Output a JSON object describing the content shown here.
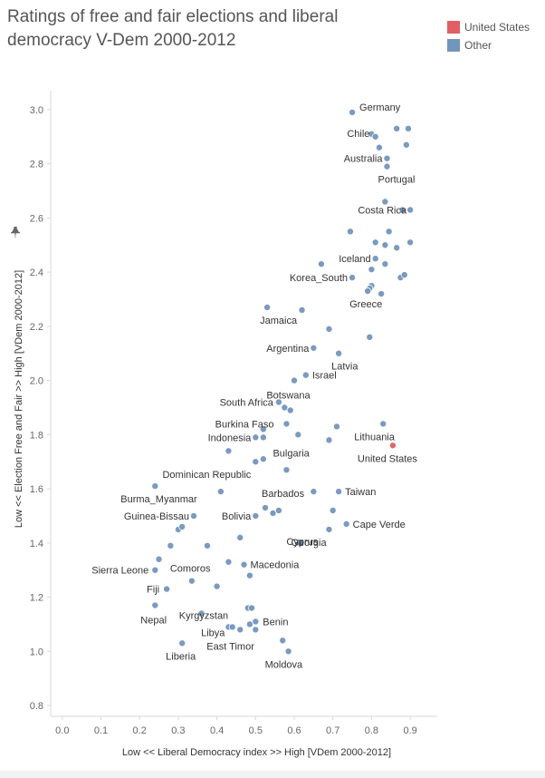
{
  "title": "Ratings of free and fair elections and liberal democracy V-Dem 2000-2012",
  "legend": [
    {
      "label": "United States",
      "color": "#e05f64"
    },
    {
      "label": "Other",
      "color": "#7395bd"
    }
  ],
  "icons": {
    "pin": "pin-icon"
  },
  "chart_data": {
    "type": "scatter",
    "title": "Ratings of free and fair elections and liberal democracy V-Dem 2000-2012",
    "xlabel": "Low << Liberal Democracy index >> High [VDem 2000-2012]",
    "ylabel": "Low << Election Free and Fair >> High [VDem 2000-2012]",
    "xlim": [
      -0.03,
      0.97
    ],
    "ylim": [
      0.76,
      3.07
    ],
    "xticks": [
      "0.0",
      "0.1",
      "0.2",
      "0.3",
      "0.4",
      "0.5",
      "0.6",
      "0.7",
      "0.8",
      "0.9"
    ],
    "yticks": [
      "0.8",
      "1.0",
      "1.2",
      "1.4",
      "1.6",
      "1.8",
      "2.0",
      "2.2",
      "2.4",
      "2.6",
      "2.8",
      "3.0"
    ],
    "grid": false,
    "series": [
      {
        "name": "United States",
        "points": [
          {
            "x": 0.855,
            "y": 1.76,
            "label": "United States"
          }
        ]
      },
      {
        "name": "Other",
        "points": [
          {
            "x": 0.75,
            "y": 2.99,
            "label": "Germany"
          },
          {
            "x": 0.8,
            "y": 2.91,
            "label": "Chile"
          },
          {
            "x": 0.81,
            "y": 2.9
          },
          {
            "x": 0.82,
            "y": 2.86
          },
          {
            "x": 0.865,
            "y": 2.93
          },
          {
            "x": 0.895,
            "y": 2.93
          },
          {
            "x": 0.89,
            "y": 2.87
          },
          {
            "x": 0.84,
            "y": 2.82,
            "label": "Australia"
          },
          {
            "x": 0.84,
            "y": 2.79,
            "label": "Portugal"
          },
          {
            "x": 0.835,
            "y": 2.66
          },
          {
            "x": 0.88,
            "y": 2.63
          },
          {
            "x": 0.9,
            "y": 2.63,
            "label": "Costa Rica"
          },
          {
            "x": 0.745,
            "y": 2.55
          },
          {
            "x": 0.845,
            "y": 2.55
          },
          {
            "x": 0.81,
            "y": 2.51
          },
          {
            "x": 0.835,
            "y": 2.5
          },
          {
            "x": 0.865,
            "y": 2.49
          },
          {
            "x": 0.9,
            "y": 2.51
          },
          {
            "x": 0.81,
            "y": 2.45,
            "label": "Iceland"
          },
          {
            "x": 0.835,
            "y": 2.43
          },
          {
            "x": 0.8,
            "y": 2.41
          },
          {
            "x": 0.67,
            "y": 2.43
          },
          {
            "x": 0.75,
            "y": 2.38,
            "label": "Korea_South"
          },
          {
            "x": 0.875,
            "y": 2.38
          },
          {
            "x": 0.885,
            "y": 2.39
          },
          {
            "x": 0.8,
            "y": 2.35
          },
          {
            "x": 0.795,
            "y": 2.34
          },
          {
            "x": 0.79,
            "y": 2.33,
            "label": "Greece"
          },
          {
            "x": 0.825,
            "y": 2.32
          },
          {
            "x": 0.53,
            "y": 2.27,
            "label": "Jamaica"
          },
          {
            "x": 0.62,
            "y": 2.26
          },
          {
            "x": 0.69,
            "y": 2.19
          },
          {
            "x": 0.795,
            "y": 2.16
          },
          {
            "x": 0.65,
            "y": 2.12,
            "label": "Argentina"
          },
          {
            "x": 0.715,
            "y": 2.1,
            "label": "Latvia"
          },
          {
            "x": 0.63,
            "y": 2.02,
            "label": "Israel"
          },
          {
            "x": 0.6,
            "y": 2.0
          },
          {
            "x": 0.56,
            "y": 1.92,
            "label": "South Africa"
          },
          {
            "x": 0.575,
            "y": 1.9,
            "label": "Botswana"
          },
          {
            "x": 0.59,
            "y": 1.89
          },
          {
            "x": 0.58,
            "y": 1.84,
            "label": "Burkina Faso"
          },
          {
            "x": 0.52,
            "y": 1.82
          },
          {
            "x": 0.71,
            "y": 1.83
          },
          {
            "x": 0.83,
            "y": 1.84,
            "label": "Lithuania"
          },
          {
            "x": 0.5,
            "y": 1.79,
            "label": "Indonesia"
          },
          {
            "x": 0.52,
            "y": 1.79
          },
          {
            "x": 0.61,
            "y": 1.8
          },
          {
            "x": 0.69,
            "y": 1.78,
            "label": "Bulgaria"
          },
          {
            "x": 0.43,
            "y": 1.74
          },
          {
            "x": 0.5,
            "y": 1.7,
            "label": "Dominican Republic"
          },
          {
            "x": 0.52,
            "y": 1.71
          },
          {
            "x": 0.58,
            "y": 1.67
          },
          {
            "x": 0.24,
            "y": 1.61,
            "label": "Burma_Myanmar"
          },
          {
            "x": 0.41,
            "y": 1.59
          },
          {
            "x": 0.65,
            "y": 1.59
          },
          {
            "x": 0.715,
            "y": 1.59,
            "label": "Taiwan"
          },
          {
            "x": 0.525,
            "y": 1.53,
            "label": "Barbados"
          },
          {
            "x": 0.545,
            "y": 1.51
          },
          {
            "x": 0.56,
            "y": 1.52
          },
          {
            "x": 0.7,
            "y": 1.52
          },
          {
            "x": 0.34,
            "y": 1.5,
            "label": "Guinea-Bissau"
          },
          {
            "x": 0.5,
            "y": 1.5,
            "label": "Bolivia"
          },
          {
            "x": 0.735,
            "y": 1.47,
            "label": "Cape Verde"
          },
          {
            "x": 0.69,
            "y": 1.45,
            "label": "Georgia"
          },
          {
            "x": 0.3,
            "y": 1.45
          },
          {
            "x": 0.31,
            "y": 1.46
          },
          {
            "x": 0.46,
            "y": 1.42
          },
          {
            "x": 0.615,
            "y": 1.4,
            "label": "Cyprus"
          },
          {
            "x": 0.28,
            "y": 1.39
          },
          {
            "x": 0.375,
            "y": 1.39
          },
          {
            "x": 0.25,
            "y": 1.34
          },
          {
            "x": 0.24,
            "y": 1.3,
            "label": "Sierra Leone"
          },
          {
            "x": 0.43,
            "y": 1.33
          },
          {
            "x": 0.47,
            "y": 1.32,
            "label": "Macedonia"
          },
          {
            "x": 0.485,
            "y": 1.28
          },
          {
            "x": 0.335,
            "y": 1.26,
            "label": "Comoros"
          },
          {
            "x": 0.4,
            "y": 1.24
          },
          {
            "x": 0.27,
            "y": 1.23,
            "label": "Fiji"
          },
          {
            "x": 0.24,
            "y": 1.17,
            "label": "Nepal"
          },
          {
            "x": 0.48,
            "y": 1.16,
            "label": "Kyrgyzstan"
          },
          {
            "x": 0.49,
            "y": 1.16
          },
          {
            "x": 0.36,
            "y": 1.14
          },
          {
            "x": 0.5,
            "y": 1.11,
            "label": "Benin"
          },
          {
            "x": 0.485,
            "y": 1.1
          },
          {
            "x": 0.43,
            "y": 1.09,
            "label": "Libya"
          },
          {
            "x": 0.44,
            "y": 1.09
          },
          {
            "x": 0.46,
            "y": 1.08
          },
          {
            "x": 0.5,
            "y": 1.08,
            "label": "East Timor"
          },
          {
            "x": 0.31,
            "y": 1.03,
            "label": "Liberia"
          },
          {
            "x": 0.57,
            "y": 1.04
          },
          {
            "x": 0.585,
            "y": 1.0,
            "label": "Moldova"
          }
        ]
      }
    ]
  }
}
